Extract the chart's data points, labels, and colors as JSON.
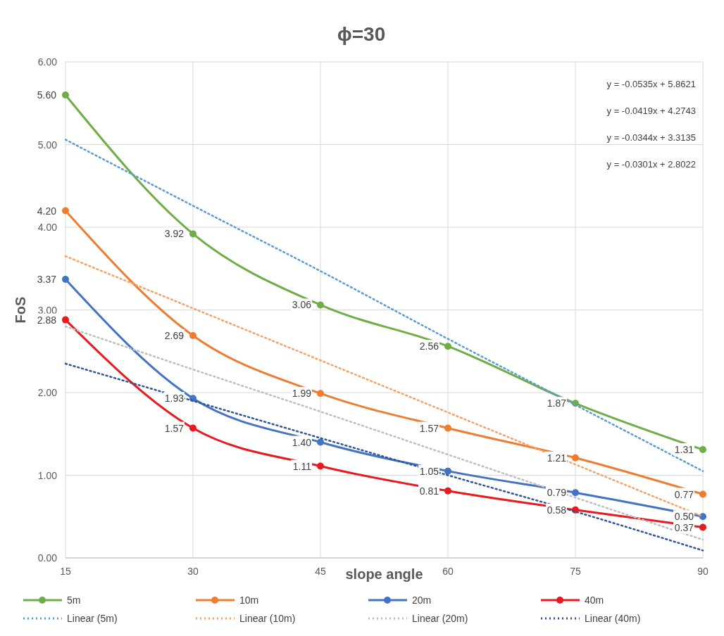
{
  "chart_data": {
    "type": "line",
    "title": "ϕ=30",
    "xlabel": "slope angle",
    "ylabel": "FoS",
    "x": [
      15,
      30,
      45,
      60,
      75,
      90
    ],
    "xlim": [
      15,
      90
    ],
    "xticks": [
      15,
      30,
      45,
      60,
      75,
      90
    ],
    "ylim": [
      0,
      6
    ],
    "yticks": [
      {
        "value": 0,
        "label": "0.00"
      },
      {
        "value": 1,
        "label": "1.00"
      },
      {
        "value": 2,
        "label": "2.00"
      },
      {
        "value": 3,
        "label": "3.00"
      },
      {
        "value": 4,
        "label": "4.00"
      },
      {
        "value": 5,
        "label": "5.00"
      },
      {
        "value": 6,
        "label": "6.00"
      }
    ],
    "grid": true,
    "legend": "bottom",
    "series": [
      {
        "name": "5m",
        "color": "#70ad47",
        "marker": "circle",
        "values": [
          5.6,
          3.92,
          3.06,
          2.56,
          1.87,
          1.31
        ],
        "value_labels": [
          "5.60",
          "3.92",
          "3.06",
          "2.56",
          "1.87",
          "1.31"
        ]
      },
      {
        "name": "10m",
        "color": "#ed7d31",
        "marker": "circle",
        "values": [
          4.2,
          2.69,
          1.99,
          1.57,
          1.21,
          0.77
        ],
        "value_labels": [
          "4.20",
          "2.69",
          "1.99",
          "1.57",
          "1.21",
          "0.77"
        ]
      },
      {
        "name": "20m",
        "color": "#4472c4",
        "marker": "circle",
        "values": [
          3.37,
          1.93,
          1.4,
          1.05,
          0.79,
          0.5
        ],
        "value_labels": [
          "3.37",
          "1.93",
          "1.40",
          "1.05",
          "0.79",
          "0.50"
        ]
      },
      {
        "name": "40m",
        "color": "#e8191f",
        "marker": "circle",
        "values": [
          2.88,
          1.57,
          1.11,
          0.81,
          0.58,
          0.37
        ],
        "value_labels": [
          "2.88",
          "1.57",
          "1.11",
          "0.81",
          "0.58",
          "0.37"
        ]
      },
      {
        "name": "Linear (5m)",
        "color": "#5b9bd5",
        "marker": "none",
        "line_style": "dotted",
        "values": [
          5.06,
          4.26,
          3.47,
          2.65,
          1.85,
          1.05
        ]
      },
      {
        "name": "Linear (10m)",
        "color": "#f4a26a",
        "marker": "none",
        "line_style": "dotted",
        "values": [
          3.65,
          3.02,
          2.39,
          1.76,
          1.13,
          0.5
        ]
      },
      {
        "name": "Linear (20m)",
        "color": "#bfbfbf",
        "marker": "none",
        "line_style": "dotted",
        "values": [
          2.8,
          2.28,
          1.77,
          1.25,
          0.73,
          0.22
        ]
      },
      {
        "name": "Linear (40m)",
        "color": "#2f5597",
        "marker": "none",
        "line_style": "dotted",
        "values": [
          2.35,
          1.9,
          1.45,
          1.0,
          0.56,
          0.09
        ]
      }
    ],
    "annotations": [
      "y = -0.0535x + 5.8621",
      "y = -0.0419x + 4.2743",
      "y = -0.0344x + 3.3135",
      "y = -0.0301x + 2.8022"
    ]
  }
}
